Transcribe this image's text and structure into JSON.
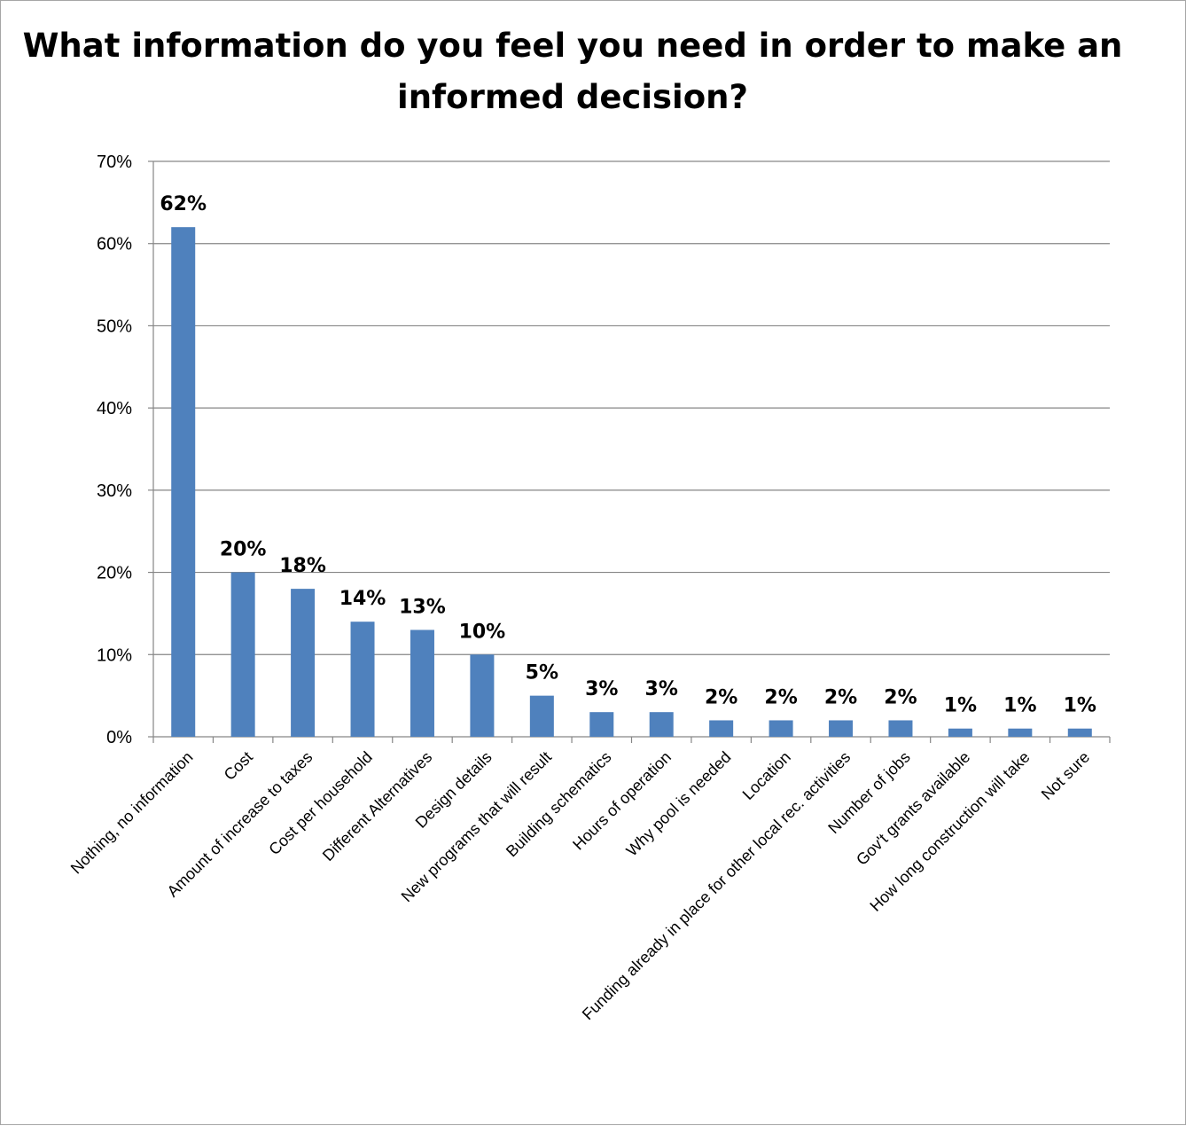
{
  "chart_data": {
    "type": "bar",
    "title": "What information do you feel you need in order to make an informed decision?",
    "xlabel": "",
    "ylabel": "",
    "ylim": [
      0,
      70
    ],
    "y_ticks": [
      "0%",
      "10%",
      "20%",
      "30%",
      "40%",
      "50%",
      "60%",
      "70%"
    ],
    "grid": true,
    "legend": "none",
    "bar_color": "#4f81bd",
    "categories": [
      "Nothing, no information",
      "Cost",
      "Amount of increase to taxes",
      "Cost per household",
      "Different Alternatives",
      "Design details",
      "New programs that will result",
      "Building schematics",
      "Hours of operation",
      "Why pool is needed",
      "Location",
      "Funding already in place for other local rec. activities",
      "Number of jobs",
      "Gov't grants available",
      "How long construction will take",
      "Not sure"
    ],
    "values": [
      62,
      20,
      18,
      14,
      13,
      10,
      5,
      3,
      3,
      2,
      2,
      2,
      2,
      1,
      1,
      1
    ],
    "data_labels": [
      "62%",
      "20%",
      "18%",
      "14%",
      "13%",
      "10%",
      "5%",
      "3%",
      "3%",
      "2%",
      "2%",
      "2%",
      "2%",
      "1%",
      "1%",
      "1%"
    ]
  }
}
